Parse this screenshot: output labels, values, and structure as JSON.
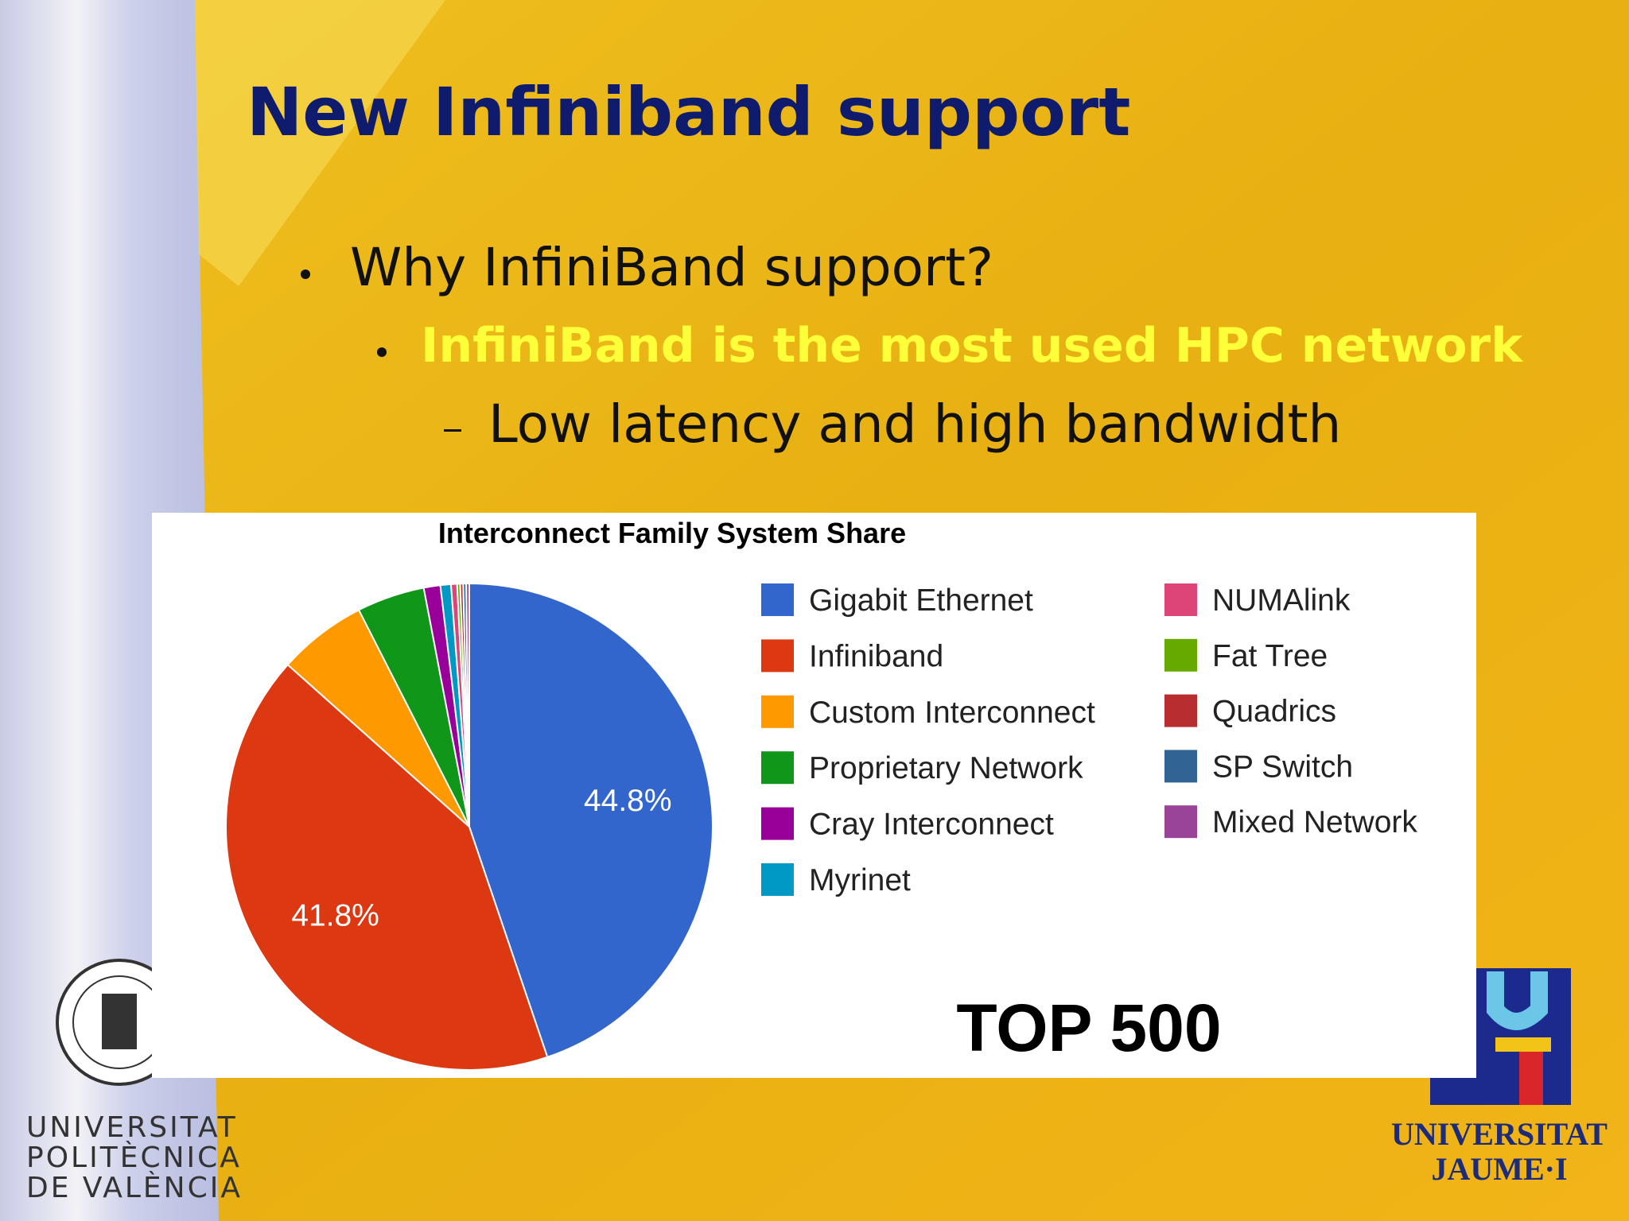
{
  "slide": {
    "title": "New Infiniband support",
    "bullets": [
      "Why InfiniBand support?",
      "InfiniBand is the most used HPC network",
      "Low latency and high bandwidth"
    ],
    "caption": "TOP 500",
    "logo_left": [
      "UNIVERSITAT",
      "POLITÈCNICA",
      "DE VALÈNCIA"
    ],
    "logo_right": [
      "UNIVERSITAT",
      "JAUME·I"
    ]
  },
  "chart_data": {
    "type": "pie",
    "title": "Interconnect Family System Share",
    "categories": [
      "Gigabit Ethernet",
      "Infiniband",
      "Custom Interconnect",
      "Proprietary Network",
      "Cray Interconnect",
      "Myrinet",
      "NUMAlink",
      "Fat Tree",
      "Quadrics",
      "SP Switch",
      "Mixed Network"
    ],
    "values": [
      44.8,
      41.8,
      5.9,
      4.5,
      1.1,
      0.7,
      0.4,
      0.2,
      0.2,
      0.2,
      0.2
    ],
    "value_labels": [
      "44.8%",
      "41.8%",
      null,
      null,
      null,
      null,
      null,
      null,
      null,
      null,
      null
    ],
    "colors": [
      "#3366cc",
      "#dc3912",
      "#ff9900",
      "#109618",
      "#990099",
      "#0099c6",
      "#dd4477",
      "#66aa00",
      "#b82e2e",
      "#316395",
      "#994499"
    ],
    "legend": "right"
  }
}
